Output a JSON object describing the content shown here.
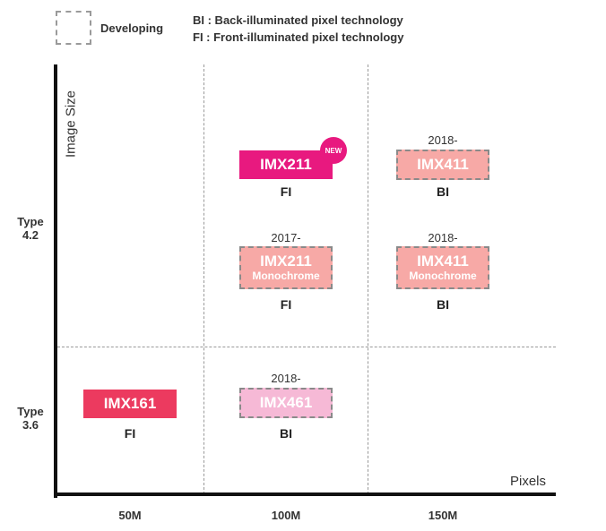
{
  "legend": {
    "developing": "Developing",
    "bi_def": "BI : Back-illuminated pixel technology",
    "fi_def": "FI : Front-illuminated pixel technology"
  },
  "axes": {
    "y_title": "Image Size",
    "x_title": "Pixels",
    "y_ticks": [
      {
        "line1": "Type",
        "line2": "4.2"
      },
      {
        "line1": "Type",
        "line2": "3.6"
      }
    ],
    "x_ticks": [
      "50M",
      "100M",
      "150M"
    ]
  },
  "colors": {
    "magenta": "#e8197f",
    "red_pink": "#ec3a5f",
    "salmon": "#f7a9a6",
    "light_pink": "#f6b9d6"
  },
  "sensors": [
    {
      "name": "IMX211",
      "sub": "",
      "year": "",
      "tech": "FI",
      "badge": "NEW",
      "status": "released",
      "color": "#e8197f",
      "pixels": "100M",
      "size": "Type 4.2"
    },
    {
      "name": "IMX411",
      "sub": "",
      "year": "2018-",
      "tech": "BI",
      "badge": "",
      "status": "developing",
      "color": "#f7a9a6",
      "pixels": "150M",
      "size": "Type 4.2"
    },
    {
      "name": "IMX211",
      "sub": "Monochrome",
      "year": "2017-",
      "tech": "FI",
      "badge": "",
      "status": "developing",
      "color": "#f7a9a6",
      "pixels": "100M",
      "size": "Type 4.2"
    },
    {
      "name": "IMX411",
      "sub": "Monochrome",
      "year": "2018-",
      "tech": "BI",
      "badge": "",
      "status": "developing",
      "color": "#f7a9a6",
      "pixels": "150M",
      "size": "Type 4.2"
    },
    {
      "name": "IMX161",
      "sub": "",
      "year": "",
      "tech": "FI",
      "badge": "",
      "status": "released",
      "color": "#ec3a5f",
      "pixels": "50M",
      "size": "Type 3.6"
    },
    {
      "name": "IMX461",
      "sub": "",
      "year": "2018-",
      "tech": "BI",
      "badge": "",
      "status": "developing",
      "color": "#f6b9d6",
      "pixels": "100M",
      "size": "Type 3.6"
    }
  ]
}
